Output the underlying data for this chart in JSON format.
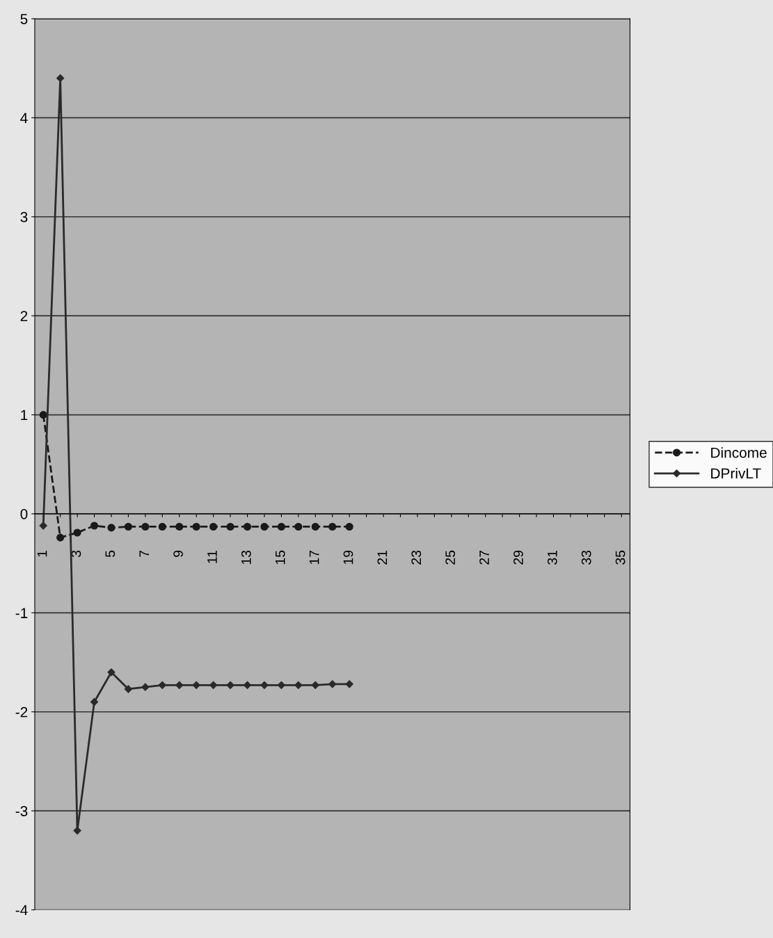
{
  "chart_data": {
    "type": "line",
    "categories": [
      "1",
      null,
      "3",
      null,
      "5",
      null,
      "7",
      null,
      "9",
      null,
      "11",
      null,
      "13",
      null,
      "15",
      null,
      "17",
      null,
      "19",
      null,
      "21",
      null,
      "23",
      null,
      "25",
      null,
      "27",
      null,
      "29",
      null,
      "31",
      null,
      "33",
      null,
      "35"
    ],
    "series": [
      {
        "name": "Dincome",
        "color": "#1a1a1a",
        "marker": "circle",
        "line_style": "dashed",
        "values": [
          1,
          -0.24,
          -0.19,
          -0.12,
          -0.14,
          -0.13,
          -0.13,
          -0.13,
          -0.13,
          -0.13,
          -0.13,
          -0.13,
          -0.13,
          -0.13,
          -0.13,
          -0.13,
          -0.13,
          -0.13,
          -0.13,
          null,
          null,
          null,
          null,
          null,
          null,
          null,
          null,
          null,
          null,
          null,
          null,
          null,
          null,
          null,
          null
        ]
      },
      {
        "name": "DPrivLT",
        "color": "#2a2a2a",
        "marker": "diamond",
        "line_style": "solid",
        "values": [
          -0.12,
          4.4,
          -3.2,
          -1.9,
          -1.6,
          -1.77,
          -1.75,
          -1.73,
          -1.73,
          -1.73,
          -1.73,
          -1.73,
          -1.73,
          -1.73,
          -1.73,
          -1.73,
          -1.73,
          -1.72,
          -1.72,
          null,
          null,
          null,
          null,
          null,
          null,
          null,
          null,
          null,
          null,
          null,
          null,
          null,
          null,
          null,
          null
        ]
      }
    ],
    "ylim": [
      -4,
      5
    ],
    "yticks": [
      -4,
      -3,
      -2,
      -1,
      0,
      1,
      2,
      3,
      4,
      5
    ],
    "grid": "y",
    "legend": "right"
  }
}
